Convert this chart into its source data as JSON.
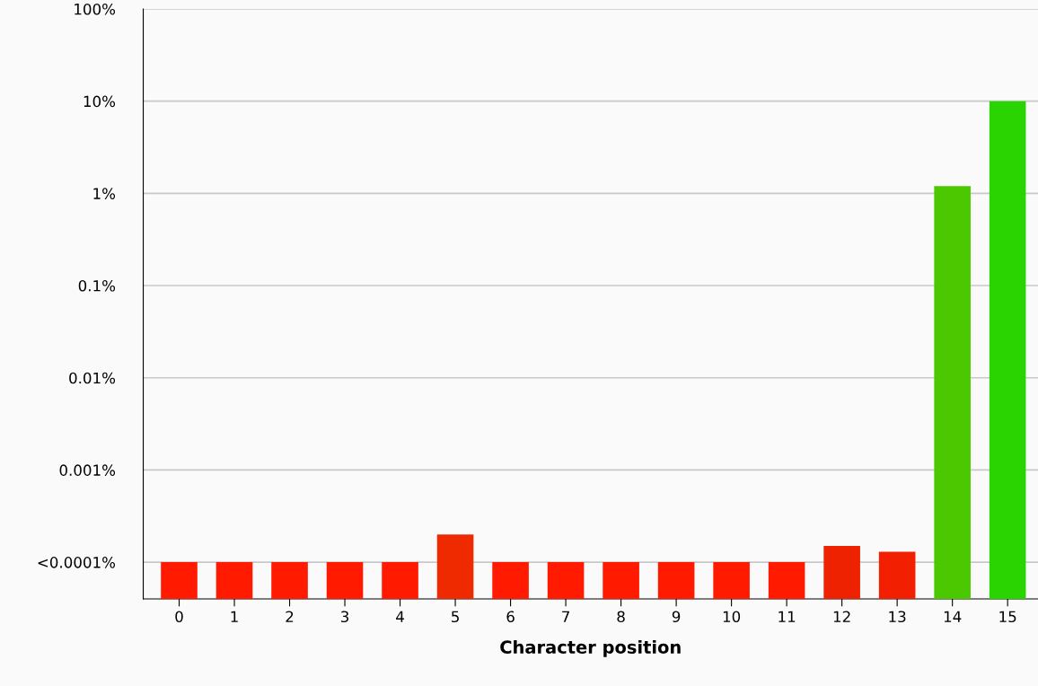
{
  "chart_data": {
    "type": "bar",
    "xlabel": "Character position",
    "categories": [
      "0",
      "1",
      "2",
      "3",
      "4",
      "5",
      "6",
      "7",
      "8",
      "9",
      "10",
      "11",
      "12",
      "13",
      "14",
      "15"
    ],
    "values": [
      0.0001,
      0.0001,
      0.0001,
      0.0001,
      0.0001,
      0.0002,
      0.0001,
      0.0001,
      0.0001,
      0.0001,
      0.0001,
      0.0001,
      0.00015,
      0.00013,
      1.2,
      10
    ],
    "colors": [
      "#ff1a00",
      "#ff1a00",
      "#ff1a00",
      "#ff1a00",
      "#ff1a00",
      "#f02a00",
      "#ff1a00",
      "#ff1a00",
      "#ff1a00",
      "#ff1a00",
      "#ff1a00",
      "#ff1a00",
      "#ee2200",
      "#f22000",
      "#4cc800",
      "#2ad400"
    ],
    "log": "y",
    "ylim": [
      4e-05,
      100
    ],
    "yticks": [
      {
        "value": 0.0001,
        "label": "<0.0001%"
      },
      {
        "value": 0.001,
        "label": "0.001%"
      },
      {
        "value": 0.01,
        "label": "0.01%"
      },
      {
        "value": 0.1,
        "label": "0.1%"
      },
      {
        "value": 1,
        "label": "1%"
      },
      {
        "value": 10,
        "label": "10%"
      },
      {
        "value": 100,
        "label": "100%"
      }
    ],
    "grid": "y"
  }
}
